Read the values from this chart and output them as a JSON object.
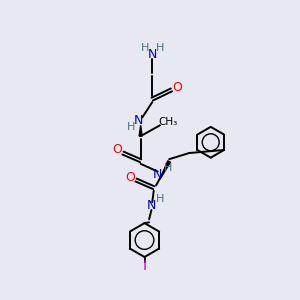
{
  "background_color": "#e8e8f2",
  "atom_colors": {
    "N": "#0000cc",
    "O": "#ff0000",
    "I": "#cc00cc",
    "C": "#000000",
    "H": "#507080"
  },
  "bond_color": "#000000",
  "bond_width": 1.4
}
